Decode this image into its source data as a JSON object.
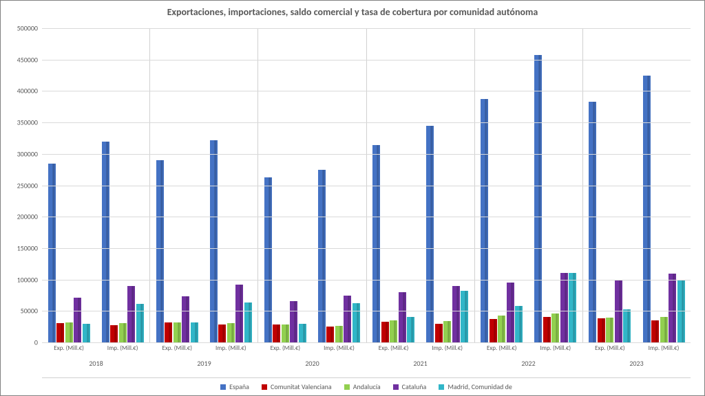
{
  "chart": {
    "type": "bar",
    "title": "Exportaciones, importaciones, saldo comercial y tasa de cobertura por comunidad autónoma",
    "title_fontsize": 14,
    "title_color": "#595959",
    "background_color": "#ffffff",
    "border_color": "#808080",
    "grid_color": "#d9d9d9",
    "axis_text_color": "#595959",
    "label_fontsize": 10,
    "y_axis": {
      "min": 0,
      "max": 500000,
      "tick_step": 50000,
      "ticks": [
        0,
        50000,
        100000,
        150000,
        200000,
        250000,
        300000,
        350000,
        400000,
        450000,
        500000
      ]
    },
    "series": [
      {
        "name": "España",
        "color": "#4472c4"
      },
      {
        "name": "Comunitat Valenciana",
        "color": "#a5a5a5_placeholder",
        "actual_color": "#c00000"
      },
      {
        "name": "Andalucía",
        "color": "#70ad47_placeholder",
        "actual_color": "#92d050"
      },
      {
        "name": "Cataluña",
        "color": "#7030a0"
      },
      {
        "name": "Madrid, Comunidad de",
        "color": "#31b6c8"
      }
    ],
    "series_colors": [
      "#4472c4",
      "#c00000",
      "#92d050",
      "#7030a0",
      "#31b6c8"
    ],
    "years": [
      "2018",
      "2019",
      "2020",
      "2021",
      "2022",
      "2023"
    ],
    "sub_categories": [
      "Exp. (Mill.€)",
      "Imp. (Mill.€)"
    ],
    "data": {
      "2018": {
        "Exp. (Mill.€)": [
          285000,
          31000,
          32000,
          71000,
          30000
        ],
        "Imp. (Mill.€)": [
          319000,
          27000,
          31000,
          90000,
          61000
        ]
      },
      "2019": {
        "Exp. (Mill.€)": [
          290000,
          32000,
          32000,
          73000,
          32000
        ],
        "Imp. (Mill.€)": [
          322000,
          28000,
          31000,
          92000,
          64000
        ]
      },
      "2020": {
        "Exp. (Mill.€)": [
          263000,
          29000,
          29000,
          66000,
          30000
        ],
        "Imp. (Mill.€)": [
          275000,
          25000,
          26000,
          74000,
          62000
        ]
      },
      "2021": {
        "Exp. (Mill.€)": [
          314000,
          33000,
          35000,
          80000,
          41000
        ],
        "Imp. (Mill.€)": [
          345000,
          30000,
          34000,
          90000,
          82000
        ]
      },
      "2022": {
        "Exp. (Mill.€)": [
          387000,
          37000,
          43000,
          95000,
          58000
        ],
        "Imp. (Mill.€)": [
          457000,
          40000,
          46000,
          110000,
          111000
        ]
      },
      "2023": {
        "Exp. (Mill.€)": [
          383000,
          38000,
          39000,
          100000,
          52000
        ],
        "Imp. (Mill.€)": [
          424000,
          35000,
          41000,
          109000,
          98000
        ]
      }
    },
    "legend_labels": [
      "España",
      "Comunitat Valenciana",
      "Andalucía",
      "Cataluña",
      "Madrid, Comunidad de"
    ]
  }
}
